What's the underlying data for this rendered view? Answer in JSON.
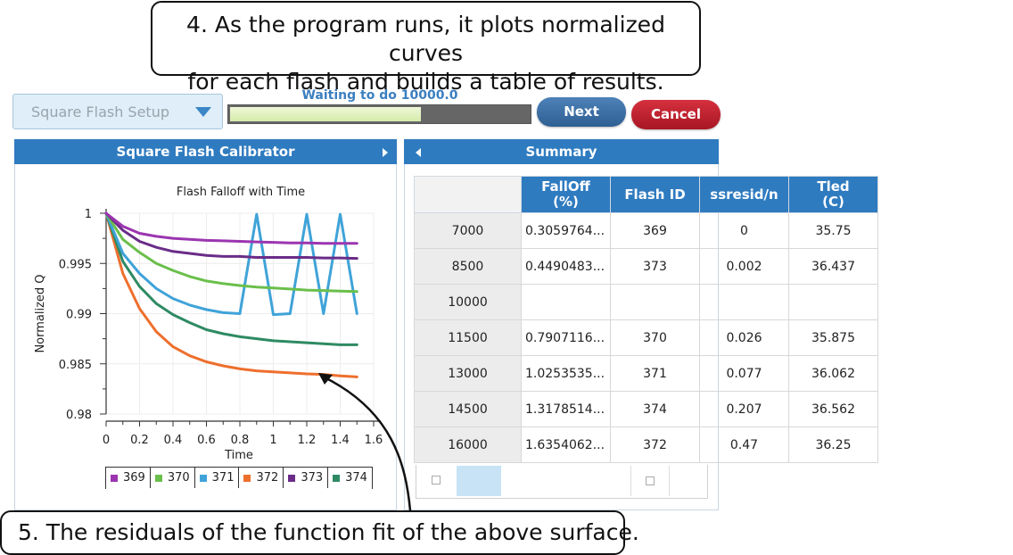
{
  "callouts": {
    "top_line1": "4. As the program runs, it plots normalized curves",
    "top_line2": "for each flash and builds a table of results.",
    "bottom": "5. The residuals of the function fit of the above surface."
  },
  "toolbar": {
    "dropdown_value": "Square Flash Setup",
    "status": "Waiting to do 10000.0",
    "progress": 0.64,
    "next_label": "Next",
    "cancel_label": "Cancel"
  },
  "calibrator": {
    "title": "Square Flash Calibrator"
  },
  "summary": {
    "title": "Summary",
    "columns": [
      "",
      "FallOff\n(%)",
      "Flash ID",
      "ssresid/n",
      "Tled\n(C)"
    ],
    "column_lines": [
      [
        "",
        ""
      ],
      [
        "FallOff",
        "(%)"
      ],
      [
        "Flash ID",
        ""
      ],
      [
        "ssresid/n",
        ""
      ],
      [
        "Tled",
        "(C)"
      ]
    ],
    "rows": [
      [
        "7000",
        "0.3059764...",
        "369",
        "0",
        "35.75"
      ],
      [
        "8500",
        "0.4490483...",
        "373",
        "0.002",
        "36.437"
      ],
      [
        "10000",
        "",
        "",
        "",
        ""
      ],
      [
        "11500",
        "0.7907116...",
        "370",
        "0.026",
        "35.875"
      ],
      [
        "13000",
        "1.0253535...",
        "371",
        "0.077",
        "36.062"
      ],
      [
        "14500",
        "1.3178514...",
        "374",
        "0.207",
        "36.562"
      ],
      [
        "16000",
        "1.6354062...",
        "372",
        "0.47",
        "36.25"
      ]
    ]
  },
  "chart_data": {
    "type": "line",
    "title": "Flash Falloff with Time",
    "xlabel": "Time",
    "ylabel": "Normalized Q",
    "xlim": [
      0,
      1.6
    ],
    "ylim": [
      0.98,
      1
    ],
    "xticks": [
      "0",
      "0.2",
      "0.4",
      "0.6",
      "0.8",
      "1",
      "1.2",
      "1.4",
      "1.6"
    ],
    "yticks": [
      "1",
      "0.995",
      "0.99",
      "0.985",
      "0.98"
    ],
    "grid": true,
    "legend_position": "bottom",
    "x": [
      0,
      0.1,
      0.2,
      0.3,
      0.4,
      0.5,
      0.6,
      0.7,
      0.8,
      0.9,
      1.0,
      1.1,
      1.2,
      1.3,
      1.4,
      1.5
    ],
    "series": [
      {
        "name": "369",
        "color": "#9b35b0",
        "values": [
          1.0,
          0.9987,
          0.998,
          0.9977,
          0.9975,
          0.9974,
          0.9973,
          0.99725,
          0.9972,
          0.99715,
          0.9971,
          0.99705,
          0.99705,
          0.997,
          0.997,
          0.997
        ]
      },
      {
        "name": "370",
        "color": "#6abf4b",
        "values": [
          1.0,
          0.9974,
          0.9961,
          0.995,
          0.9943,
          0.9937,
          0.99325,
          0.993,
          0.9928,
          0.99265,
          0.99255,
          0.99245,
          0.99235,
          0.9923,
          0.99225,
          0.9922
        ]
      },
      {
        "name": "371",
        "color": "#3fa3d8",
        "values": [
          1.0,
          0.996,
          0.994,
          0.9925,
          0.9915,
          0.99085,
          0.9904,
          0.9901,
          0.99,
          0.9999,
          0.9899,
          0.99,
          0.9999,
          0.99,
          0.9999,
          0.99
        ]
      },
      {
        "name": "372",
        "color": "#ee6f2d",
        "values": [
          1.0,
          0.994,
          0.9905,
          0.9882,
          0.9867,
          0.9858,
          0.9852,
          0.9848,
          0.9845,
          0.9843,
          0.9842,
          0.9841,
          0.984,
          0.98395,
          0.9838,
          0.9837
        ]
      },
      {
        "name": "373",
        "color": "#6a2c88",
        "values": [
          1.0,
          0.9983,
          0.9972,
          0.9966,
          0.9962,
          0.996,
          0.9958,
          0.9957,
          0.9957,
          0.9956,
          0.9956,
          0.9956,
          0.9956,
          0.99555,
          0.99555,
          0.9955
        ]
      },
      {
        "name": "374",
        "color": "#2e8a63",
        "values": [
          1.0,
          0.9952,
          0.9927,
          0.991,
          0.9899,
          0.9891,
          0.9884,
          0.988,
          0.9877,
          0.9875,
          0.9873,
          0.9872,
          0.9871,
          0.987,
          0.9869,
          0.9869
        ]
      }
    ]
  }
}
